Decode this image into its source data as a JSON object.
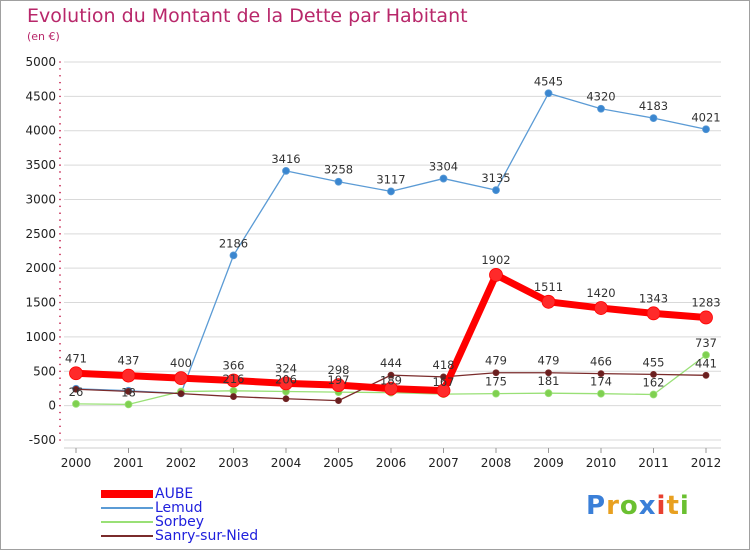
{
  "header": {
    "title": "Evolution du Montant de la Dette par Habitant",
    "subtitle": "(en €)"
  },
  "brand": {
    "letters": [
      "P",
      "r",
      "o",
      "x",
      "i",
      "t",
      "i"
    ],
    "colors": [
      "#3a7fd8",
      "#e8a020",
      "#6ac030",
      "#3a7fd8",
      "#e84030",
      "#e8a020",
      "#6ac030"
    ]
  },
  "colors": {
    "title": "#b8276a",
    "legend_text": "#2020dd",
    "grid": "#d9d9d9",
    "tick_dots": "#c01040"
  },
  "chart_data": {
    "type": "line",
    "title": "Evolution du Montant de la Dette par Habitant",
    "subtitle": "(en €)",
    "xlabel": "",
    "ylabel": "",
    "x": [
      "2000",
      "2001",
      "2002",
      "2003",
      "2004",
      "2005",
      "2006",
      "2007",
      "2008",
      "2009",
      "2010",
      "2011",
      "2012"
    ],
    "ylim": [
      -500,
      5000
    ],
    "yticks": [
      -500,
      0,
      500,
      1000,
      1500,
      2000,
      2500,
      3000,
      3500,
      4000,
      4500,
      5000
    ],
    "grid": "horizontal",
    "legend_position": "bottom-left",
    "series": [
      {
        "name": "AUBE",
        "color": "#ff0000",
        "marker_color": "#ff2a2a",
        "width": 7,
        "marker_r": 6.5,
        "values": [
          471,
          437,
          400,
          366,
          324,
          298,
          248,
          218,
          1902,
          1511,
          1420,
          1343,
          1283
        ],
        "labels": [
          "471",
          "437",
          "400",
          "366",
          "324",
          "298",
          "",
          "",
          "1902",
          "1511",
          "1420",
          "1343",
          "1283"
        ]
      },
      {
        "name": "Lemud",
        "color": "#5b9bd5",
        "marker_color": "#3a86d0",
        "width": 1.3,
        "marker_r": 3.5,
        "values": [
          246,
          217,
          178,
          2186,
          3416,
          3258,
          3117,
          3304,
          3135,
          4545,
          4320,
          4183,
          4021
        ],
        "labels": [
          "",
          "",
          "",
          "2186",
          "3416",
          "3258",
          "3117",
          "3304",
          "3135",
          "4545",
          "4320",
          "4183",
          "4021"
        ]
      },
      {
        "name": "Sorbey",
        "color": "#99e076",
        "marker_color": "#7fd050",
        "width": 1.3,
        "marker_r": 3.5,
        "values": [
          26,
          18,
          205,
          216,
          206,
          197,
          189,
          167,
          175,
          181,
          174,
          162,
          737
        ],
        "labels": [
          "26",
          "18",
          "",
          "216",
          "206",
          "197",
          "189",
          "167",
          "175",
          "181",
          "174",
          "162",
          "737"
        ]
      },
      {
        "name": "Sanry-sur-Nied",
        "color": "#7a2b2b",
        "marker_color": "#6a1f1f",
        "width": 1.3,
        "marker_r": 3,
        "values": [
          238,
          207,
          175,
          132,
          100,
          73,
          444,
          418,
          479,
          479,
          466,
          455,
          441
        ],
        "labels": [
          "",
          "",
          "",
          "",
          "",
          "",
          "444",
          "418",
          "479",
          "479",
          "466",
          "455",
          "441"
        ]
      }
    ]
  }
}
